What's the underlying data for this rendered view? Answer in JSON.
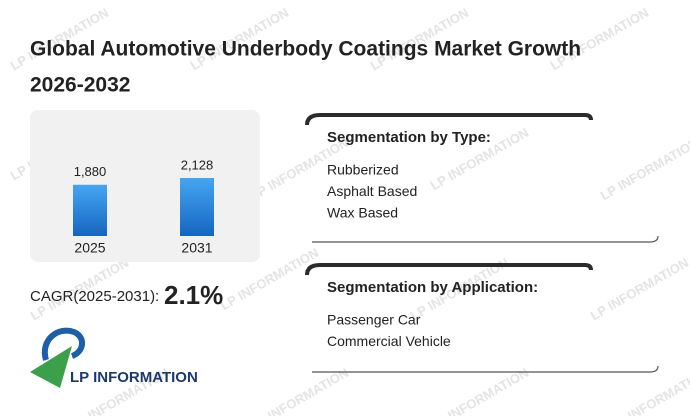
{
  "title": "Global Automotive Underbody Coatings Market Growth 2026-2032",
  "watermark": "LP INFORMATION",
  "chart_data": {
    "type": "bar",
    "categories": [
      "2025",
      "2031"
    ],
    "values": [
      1880,
      2128
    ],
    "value_labels": [
      "1,880",
      "2,128"
    ],
    "color": "#1f87e0"
  },
  "cagr": {
    "label": "CAGR(2025-2031):",
    "value": "2.1%"
  },
  "segments": [
    {
      "heading": "Segmentation by Type:",
      "items": [
        "Rubberized",
        "Asphalt Based",
        "Wax Based"
      ]
    },
    {
      "heading": "Segmentation by Application:",
      "items": [
        "Passenger Car",
        "Commercial Vehicle"
      ]
    }
  ],
  "logo": "LP INFORMATION"
}
